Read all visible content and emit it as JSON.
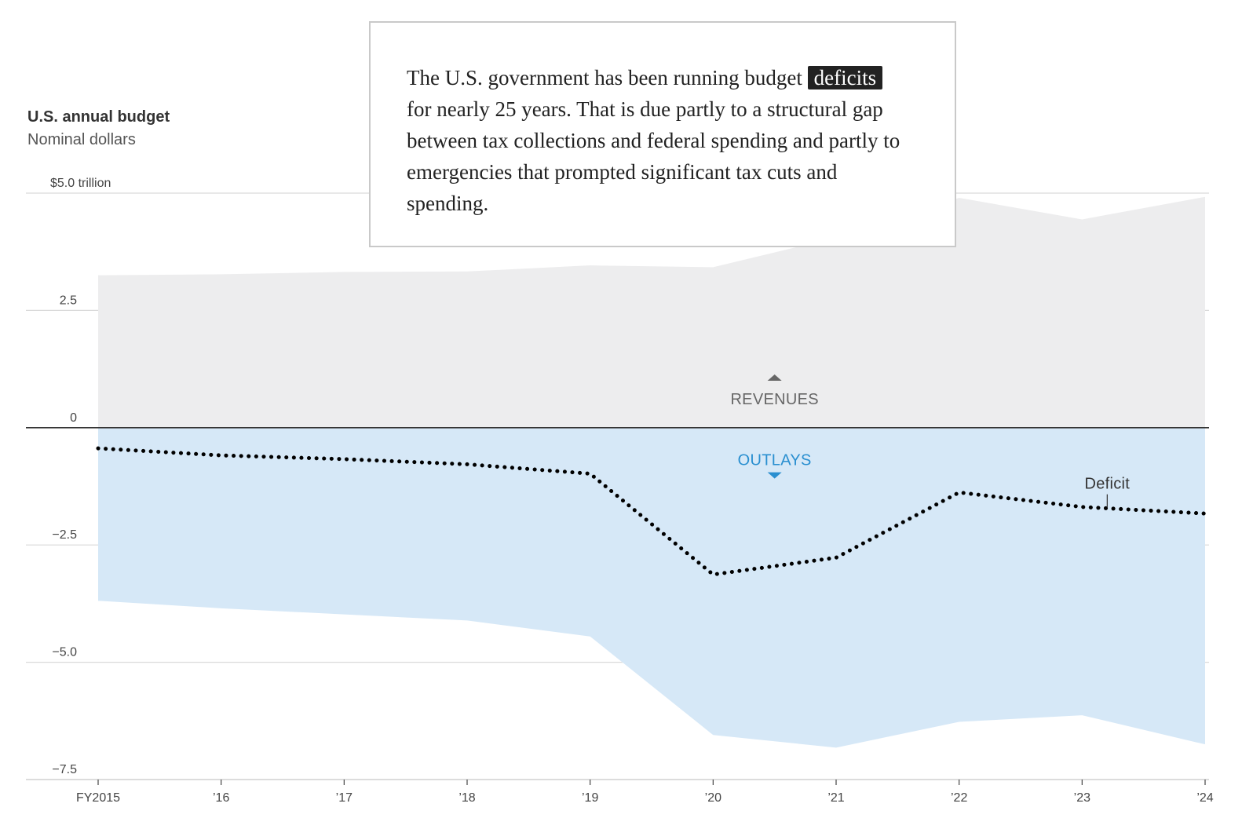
{
  "chart_data": {
    "type": "area",
    "title": "U.S. annual budget",
    "subtitle": "Nominal dollars",
    "x": [
      "FY2015",
      "’16",
      "’17",
      "’18",
      "’19",
      "’20",
      "’21",
      "’22",
      "’23",
      "’24"
    ],
    "y_unit_label": "$5.0 trillion",
    "yticks": [
      5.0,
      2.5,
      0,
      -2.5,
      -5.0,
      -7.5
    ],
    "ytick_labels": [
      "$5.0 trillion",
      "2.5",
      "0",
      "−2.5",
      "−5.0",
      "−7.5"
    ],
    "ylim": [
      -7.5,
      5.0
    ],
    "series": [
      {
        "name": "REVENUES",
        "kind": "area-above-zero",
        "color": "#ededee",
        "values": [
          3.25,
          3.27,
          3.32,
          3.33,
          3.46,
          3.42,
          4.05,
          4.9,
          4.44,
          4.92
        ]
      },
      {
        "name": "OUTLAYS",
        "kind": "area-below-zero",
        "color": "#d6e8f7",
        "label_color": "#2a8fd0",
        "values": [
          -3.69,
          -3.85,
          -3.98,
          -4.11,
          -4.45,
          -6.55,
          -6.82,
          -6.27,
          -6.13,
          -6.75
        ]
      },
      {
        "name": "Deficit",
        "kind": "dotted-line",
        "color": "#000000",
        "values": [
          -0.44,
          -0.59,
          -0.67,
          -0.78,
          -0.98,
          -3.13,
          -2.77,
          -1.38,
          -1.69,
          -1.83
        ]
      }
    ],
    "labels": {
      "revenues": "REVENUES",
      "outlays": "OUTLAYS",
      "deficit": "Deficit"
    },
    "annotation": {
      "highlight": "deficits",
      "line1": "The U.S. government has been running budget",
      "line2_rest": "for nearly 25 years. That is due partly to a structural gap between tax collections and federal spending and partly to emergencies that prompted significant tax cuts and spending."
    }
  }
}
